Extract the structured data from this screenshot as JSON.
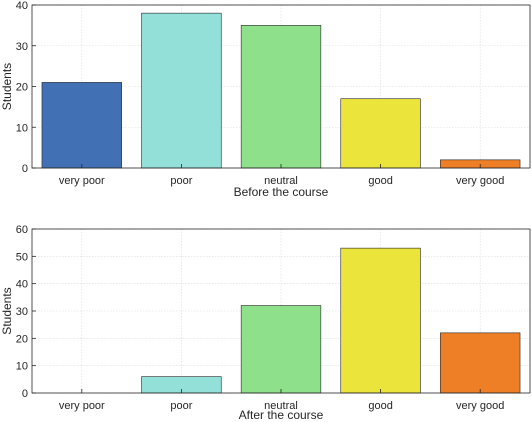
{
  "chart_data": [
    {
      "type": "bar",
      "categories": [
        "very poor",
        "poor",
        "neutral",
        "good",
        "very good"
      ],
      "values": [
        21,
        38,
        35,
        17,
        2
      ],
      "colors": [
        "#4170b4",
        "#93e0d8",
        "#8fe08a",
        "#ebe43a",
        "#ee7f26"
      ],
      "xlabel": "Before the course",
      "ylabel": "Students",
      "ylim": [
        0,
        40
      ],
      "yticks": [
        0,
        10,
        20,
        30,
        40
      ],
      "grid": true
    },
    {
      "type": "bar",
      "categories": [
        "very poor",
        "poor",
        "neutral",
        "good",
        "very good"
      ],
      "values": [
        0,
        6,
        32,
        53,
        22
      ],
      "colors": [
        "#4170b4",
        "#93e0d8",
        "#8fe08a",
        "#ebe43a",
        "#ee7f26"
      ],
      "xlabel": "After the course",
      "ylabel": "Students",
      "ylim": [
        0,
        60
      ],
      "yticks": [
        0,
        10,
        20,
        30,
        40,
        50,
        60
      ],
      "grid": true
    }
  ]
}
